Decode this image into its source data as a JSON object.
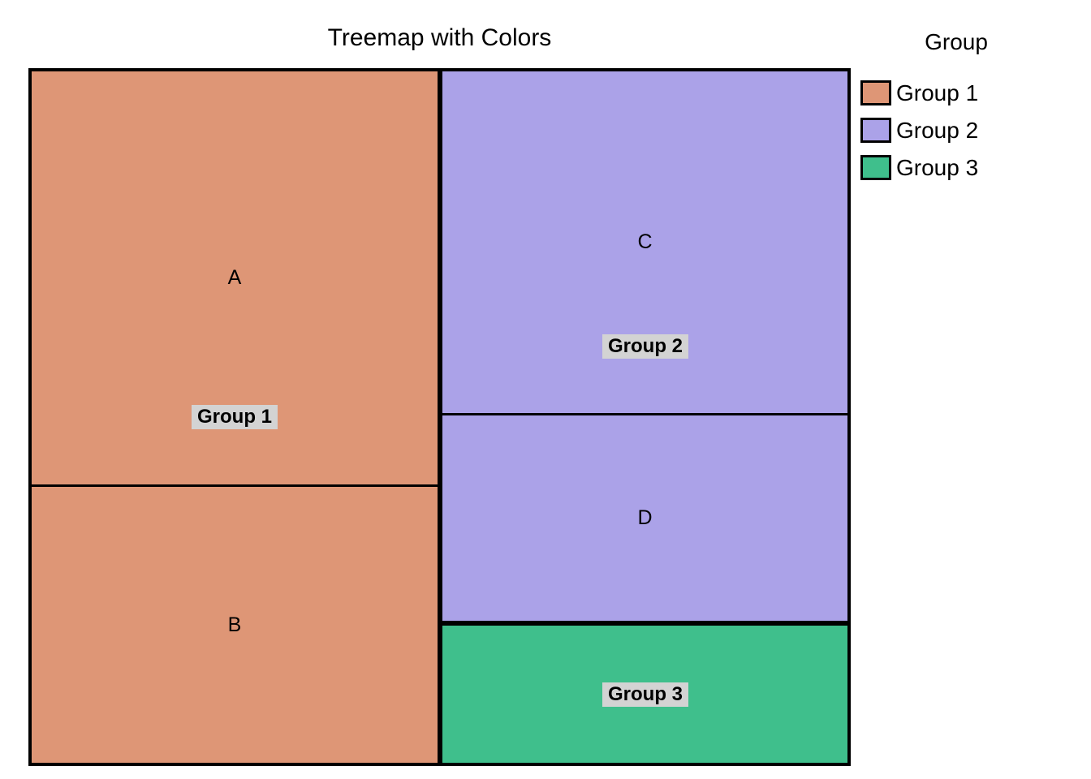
{
  "title": "Treemap with Colors",
  "treemap": {
    "tiles": [
      {
        "label": "A"
      },
      {
        "label": "B"
      },
      {
        "label": "C"
      },
      {
        "label": "D"
      }
    ],
    "group_labels": [
      "Group 1",
      "Group 2",
      "Group 3"
    ]
  },
  "legend": {
    "title": "Group",
    "items": [
      {
        "label": "Group 1",
        "color": "#DE9676"
      },
      {
        "label": "Group 2",
        "color": "#ABA2E8"
      },
      {
        "label": "Group 3",
        "color": "#3FBF8C"
      }
    ]
  },
  "colors": {
    "group1": "#DE9676",
    "group2": "#ABA2E8",
    "group3": "#3FBF8C",
    "label_background": "#D3D3D3",
    "border": "#000000",
    "background": "#FFFFFF"
  },
  "chart_data": {
    "type": "treemap",
    "title": "Treemap with Colors",
    "legend_title": "Group",
    "legend_position": "right",
    "total": 100,
    "groups": [
      {
        "name": "Group 1",
        "color": "#DE9676",
        "total": 50,
        "items": [
          {
            "label": "A",
            "value": 30
          },
          {
            "label": "B",
            "value": 20
          }
        ]
      },
      {
        "name": "Group 2",
        "color": "#ABA2E8",
        "total": 40,
        "items": [
          {
            "label": "C",
            "value": 25
          },
          {
            "label": "D",
            "value": 15
          }
        ]
      },
      {
        "name": "Group 3",
        "color": "#3FBF8C",
        "total": 10,
        "items": [
          {
            "label": "",
            "value": 10
          }
        ]
      }
    ]
  }
}
